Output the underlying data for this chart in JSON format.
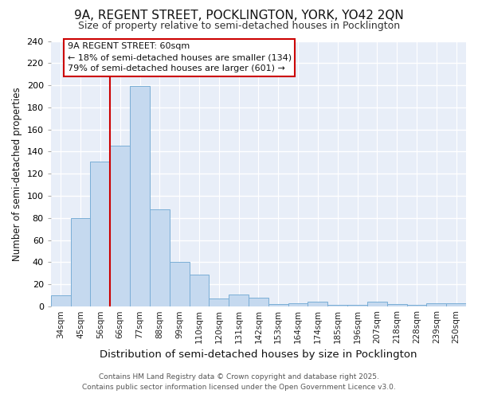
{
  "title1": "9A, REGENT STREET, POCKLINGTON, YORK, YO42 2QN",
  "title2": "Size of property relative to semi-detached houses in Pocklington",
  "xlabel": "Distribution of semi-detached houses by size in Pocklington",
  "ylabel": "Number of semi-detached properties",
  "categories": [
    "34sqm",
    "45sqm",
    "56sqm",
    "66sqm",
    "77sqm",
    "88sqm",
    "99sqm",
    "110sqm",
    "120sqm",
    "131sqm",
    "142sqm",
    "153sqm",
    "164sqm",
    "174sqm",
    "185sqm",
    "196sqm",
    "207sqm",
    "218sqm",
    "228sqm",
    "239sqm",
    "250sqm"
  ],
  "values": [
    10,
    80,
    131,
    145,
    199,
    88,
    40,
    29,
    7,
    11,
    8,
    2,
    3,
    4,
    1,
    1,
    4,
    2,
    1,
    3,
    3
  ],
  "bar_color": "#c5d9ef",
  "bar_edge_color": "#7aaed6",
  "property_line_x": 2.5,
  "annotation_title": "9A REGENT STREET: 60sqm",
  "annotation_line1": "← 18% of semi-detached houses are smaller (134)",
  "annotation_line2": "79% of semi-detached houses are larger (601) →",
  "annotation_box_facecolor": "#ffffff",
  "annotation_box_edgecolor": "#cc0000",
  "property_line_color": "#cc0000",
  "footer1": "Contains HM Land Registry data © Crown copyright and database right 2025.",
  "footer2": "Contains public sector information licensed under the Open Government Licence v3.0.",
  "ylim": [
    0,
    240
  ],
  "yticks": [
    0,
    20,
    40,
    60,
    80,
    100,
    120,
    140,
    160,
    180,
    200,
    220,
    240
  ],
  "fig_bg_color": "#ffffff",
  "plot_bg_color": "#e8eef8"
}
